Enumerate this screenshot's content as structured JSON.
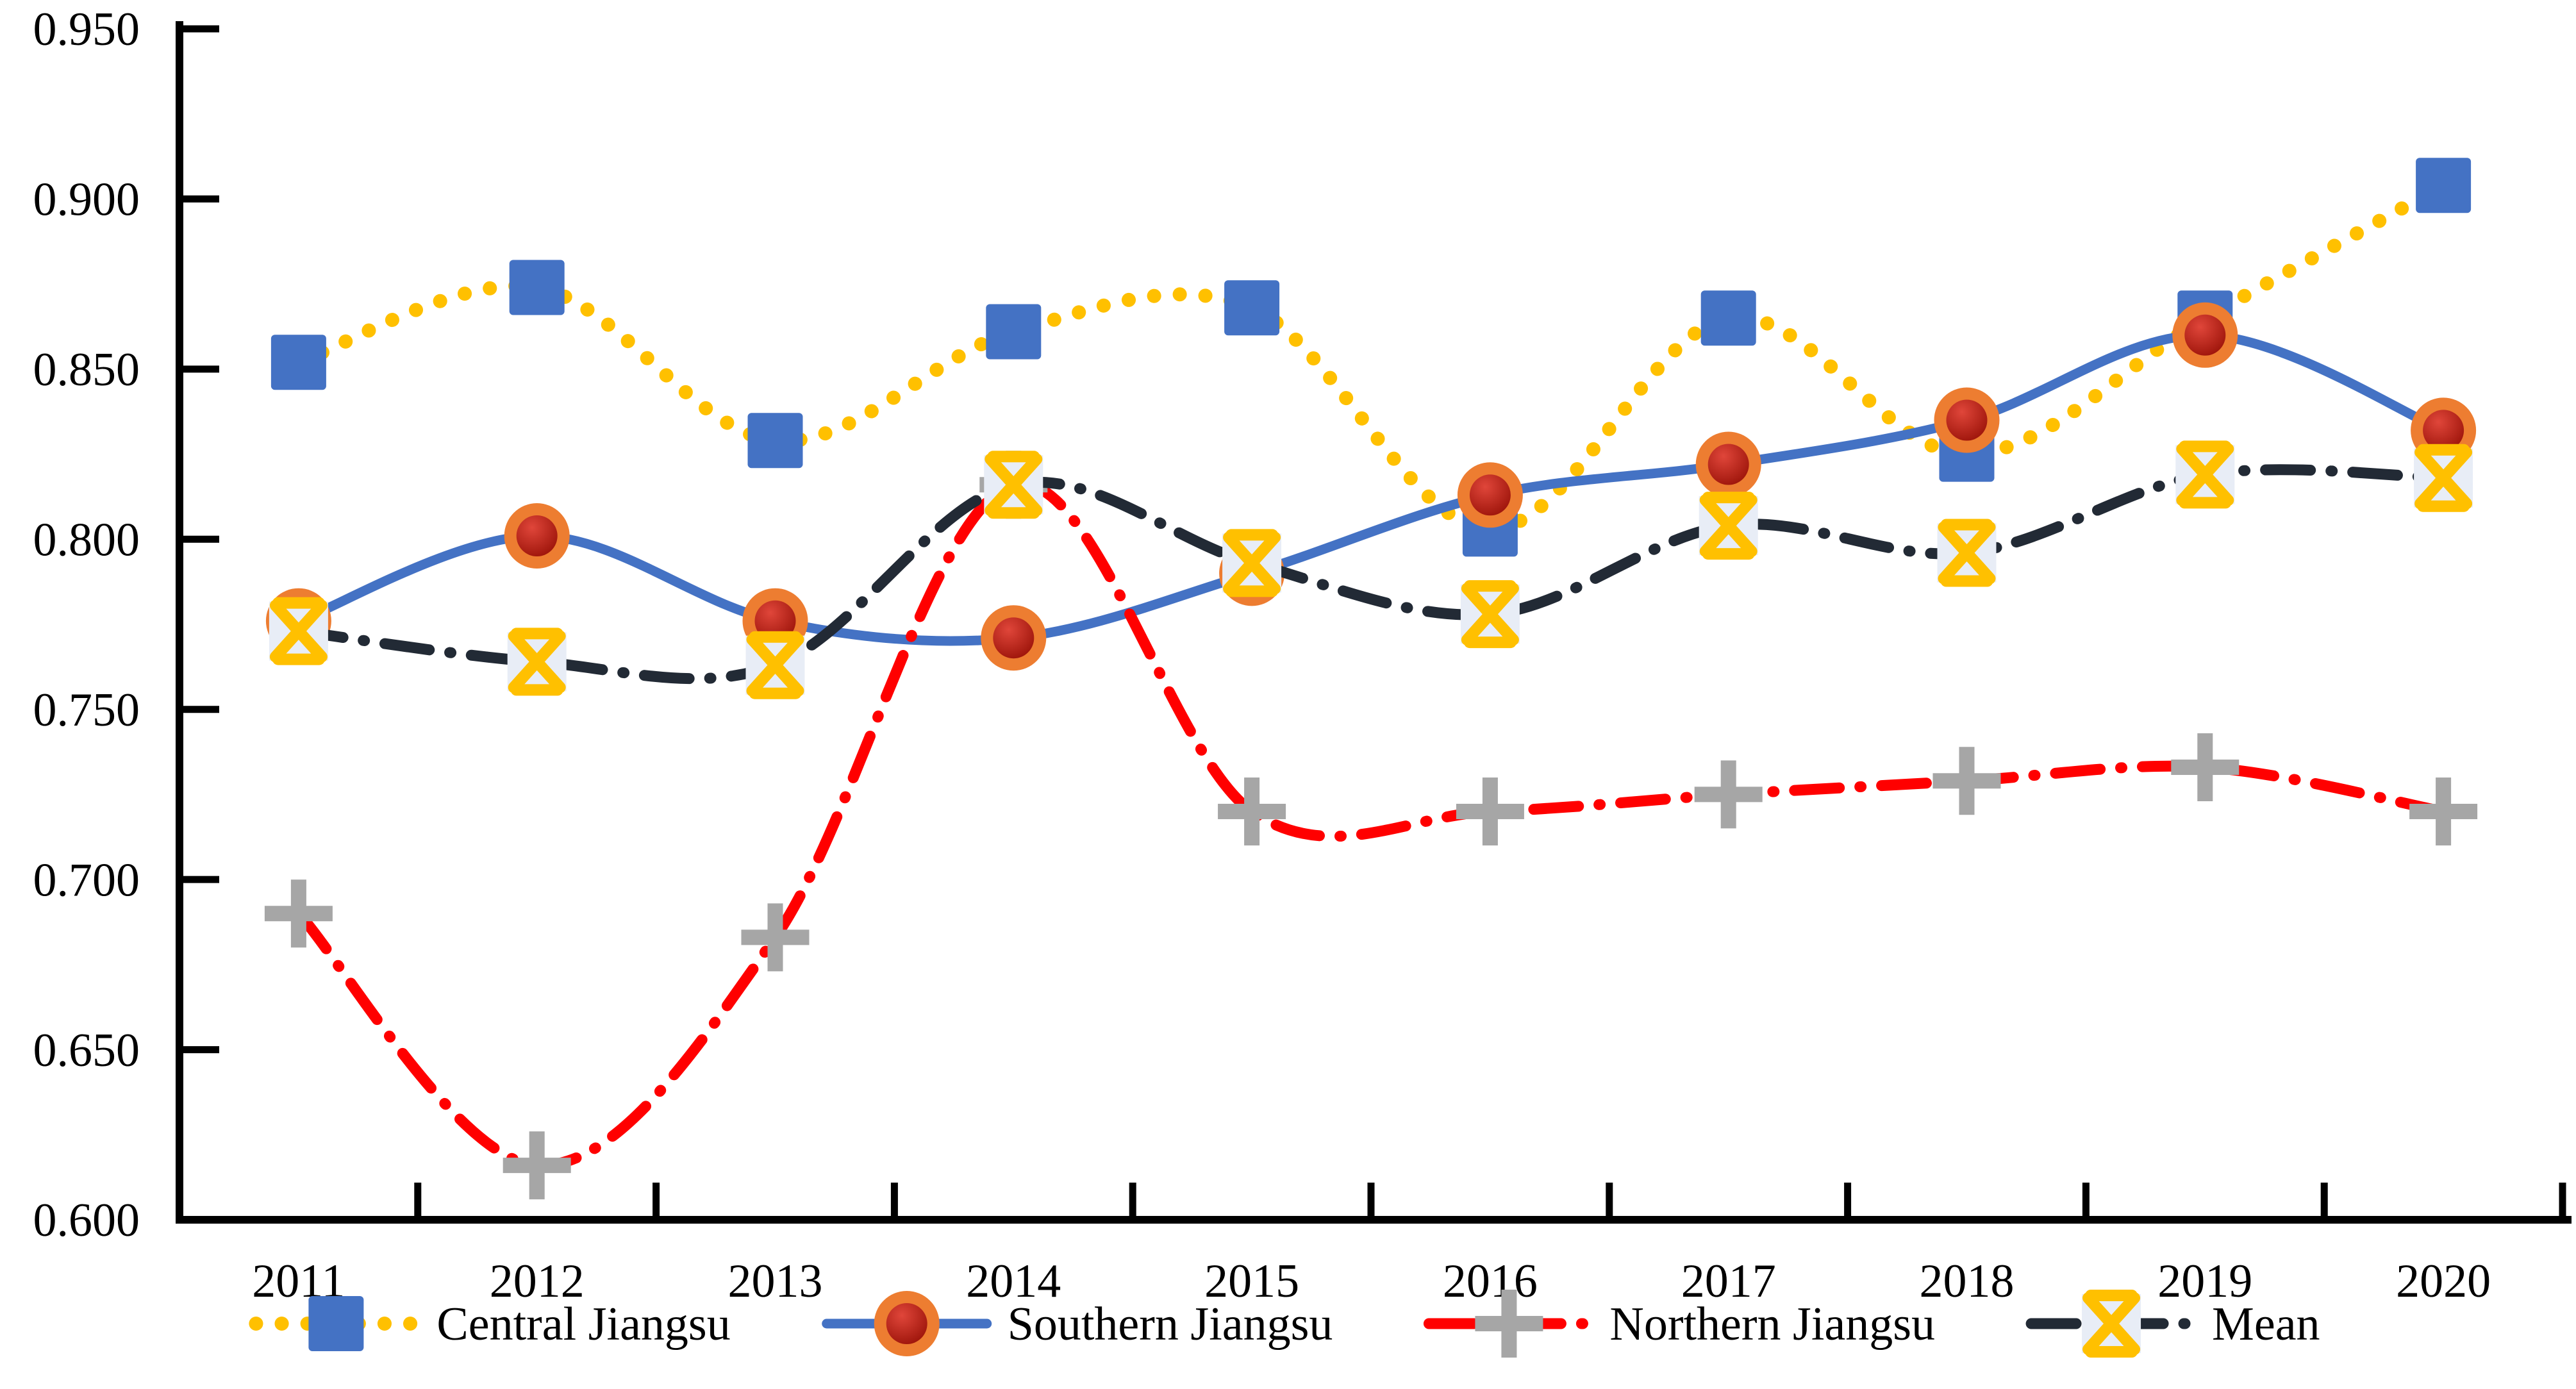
{
  "chart_data": {
    "type": "line",
    "title": "",
    "xlabel": "",
    "ylabel": "",
    "categories": [
      "2011",
      "2012",
      "2013",
      "2014",
      "2015",
      "2016",
      "2017",
      "2018",
      "2019",
      "2020"
    ],
    "ylim": [
      0.6,
      0.95
    ],
    "y_tick_step": 0.05,
    "y_tick_labels": [
      "0.600",
      "0.650",
      "0.700",
      "0.750",
      "0.800",
      "0.850",
      "0.900",
      "0.950"
    ],
    "grid": "off",
    "smooth_lines": true,
    "legend_position": "bottom",
    "axis_color": "#000000",
    "series": [
      {
        "name": "Central Jiangsu",
        "line_color": "#FFC000",
        "line_style": "dotted",
        "marker": "square",
        "marker_color": "#4472C4",
        "values": [
          0.852,
          0.874,
          0.829,
          0.861,
          0.868,
          0.803,
          0.865,
          0.825,
          0.865,
          0.904
        ]
      },
      {
        "name": "Southern Jiangsu",
        "line_color": "#4472C4",
        "line_style": "solid",
        "marker": "circle-ring",
        "marker_color": "#ED7D31",
        "marker_inner_color": "#C00000",
        "values": [
          0.776,
          0.801,
          0.776,
          0.771,
          0.79,
          0.813,
          0.822,
          0.835,
          0.86,
          0.832
        ]
      },
      {
        "name": "Northern Jiangsu",
        "line_color": "#FF0000",
        "line_style": "dash-dot",
        "marker": "plus",
        "marker_color": "#A6A6A6",
        "values": [
          0.69,
          0.616,
          0.683,
          0.816,
          0.72,
          0.72,
          0.725,
          0.729,
          0.733,
          0.72
        ]
      },
      {
        "name": "Mean",
        "line_color": "#222A35",
        "line_style": "dash-dot",
        "marker": "x",
        "marker_color": "#FFC000",
        "marker_bg": "#E8EDF6",
        "values": [
          0.773,
          0.764,
          0.763,
          0.816,
          0.793,
          0.778,
          0.804,
          0.796,
          0.819,
          0.818
        ]
      }
    ]
  }
}
